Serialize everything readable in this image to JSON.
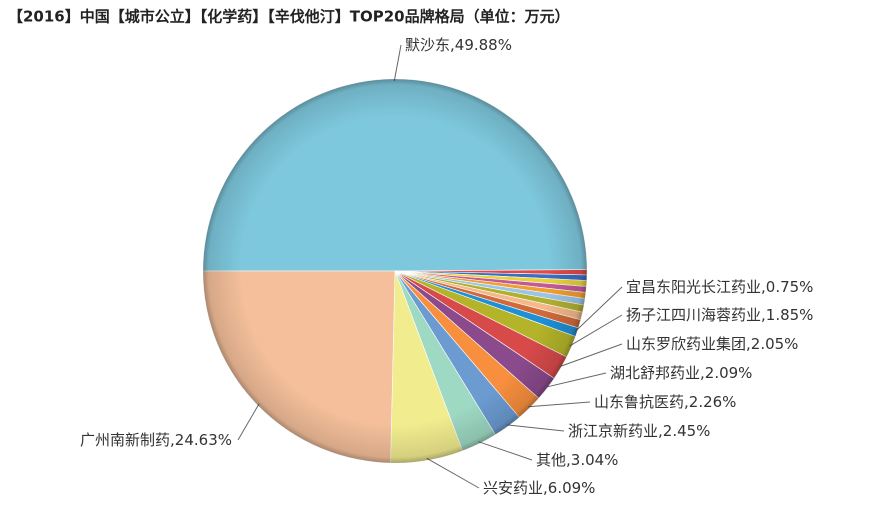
{
  "chart_data": {
    "type": "pie",
    "title": "【2016】中国【城市公立】【化学药】【辛伐他汀】TOP20品牌格局（单位：万元）",
    "categories": [
      "默沙东",
      null,
      null,
      null,
      null,
      null,
      null,
      null,
      null,
      null,
      "宜昌东阳光长江药业",
      "扬子江四川海蓉药业",
      "山东罗欣药业集团",
      "湖北舒邦药业",
      "山东鲁抗医药",
      "浙江京新药业",
      "其他",
      "兴安药业",
      "广州南新制药"
    ],
    "values": [
      49.88,
      0.45,
      0.46,
      0.5,
      0.5,
      0.5,
      0.55,
      0.6,
      0.65,
      0.7,
      0.75,
      1.85,
      2.05,
      2.09,
      2.26,
      2.45,
      3.04,
      6.09,
      24.63
    ],
    "value_labels": [
      ",49.88%",
      null,
      null,
      null,
      null,
      null,
      null,
      null,
      null,
      null,
      ",0.75%",
      ",1.85%",
      ",2.05%",
      ",2.09%",
      ",2.26%",
      ",2.45%",
      ",3.04%",
      ",6.09%",
      ",24.63%"
    ],
    "colors": [
      "#7ec8dd",
      "#e04a4a",
      "#3a6fc4",
      "#e8d23c",
      "#c25a9a",
      "#f0a030",
      "#9cc4e4",
      "#b0b030",
      "#f4b88a",
      "#d06a3a",
      "#1f8fd6",
      "#b4b42a",
      "#d84a4a",
      "#8b4a8c",
      "#f88f3e",
      "#6c9bd2",
      "#9dd9c3",
      "#f1ec8e",
      "#f4bf9a"
    ]
  }
}
